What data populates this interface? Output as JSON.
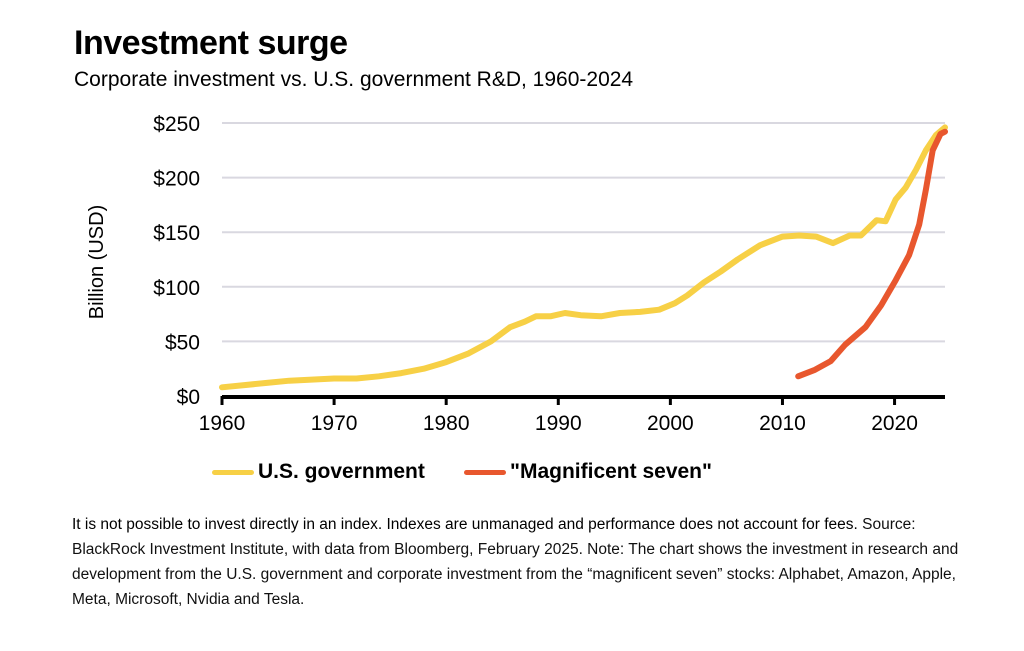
{
  "header": {
    "title": "Investment surge",
    "subtitle": "Corporate investment vs. U.S. government R&D, 1960-2024"
  },
  "footnote": {
    "disclaimer": "It is not possible to invest directly in an index. Indexes are unmanaged and performance does not account for fees.",
    "source": " Source: BlackRock Investment Institute, with data from Bloomberg, February 2025. Note: The chart shows the investment in research and development from the U.S. government and corporate investment from the “magnificent seven” stocks: Alphabet, Amazon, Apple, Meta, Microsoft, Nvidia and Tesla."
  },
  "chart_data": {
    "type": "line",
    "title": "Investment surge",
    "subtitle": "Corporate investment vs. U.S. government R&D, 1960-2024",
    "xlabel": "",
    "ylabel": "Billion (USD)",
    "xlim": [
      1960,
      2024.5
    ],
    "ylim": [
      0,
      250
    ],
    "x_ticks": [
      1960,
      1970,
      1980,
      1990,
      2000,
      2010,
      2020
    ],
    "x_tick_labels": [
      "1960",
      "1970",
      "1980",
      "1990",
      "2000",
      "2010",
      "2020"
    ],
    "y_ticks": [
      0,
      50,
      100,
      150,
      200,
      250
    ],
    "y_tick_labels": [
      "$0",
      "$50",
      "$100",
      "$150",
      "$200",
      "$250"
    ],
    "grid": "horizontal",
    "legend_position": "bottom",
    "series": [
      {
        "name": "U.S. government",
        "color": "#F7D046",
        "x": [
          1960,
          1962,
          1964,
          1966,
          1968,
          1970,
          1972,
          1974,
          1976,
          1978,
          1980,
          1982,
          1984,
          1985.7,
          1987,
          1988,
          1989.3,
          1990.6,
          1992,
          1993.8,
          1995.5,
          1997.3,
          1999,
          2000.4,
          2001.5,
          2003,
          2004.5,
          2006,
          2008,
          2010,
          2011.5,
          2013,
          2014.5,
          2016,
          2017,
          2018.4,
          2019.2,
          2020.1,
          2021,
          2021.9,
          2022.8,
          2023.7,
          2024.5
        ],
        "values": [
          8,
          10,
          12,
          14,
          15,
          16,
          16,
          18,
          21,
          25,
          31,
          39,
          50,
          63,
          68,
          73,
          73,
          76,
          74,
          73,
          76,
          77,
          79,
          85,
          92,
          104,
          114,
          125,
          138,
          146,
          147,
          146,
          140,
          147,
          147,
          161,
          160,
          180,
          191,
          207,
          225,
          239,
          246
        ]
      },
      {
        "name": "\"Magnificent seven\"",
        "color": "#E8572E",
        "x": [
          2011.4,
          2012.9,
          2014.3,
          2015.6,
          2017.4,
          2018.8,
          2020.1,
          2021.3,
          2022.2,
          2022.8,
          2023.4,
          2024.1,
          2024.5
        ],
        "values": [
          18,
          24,
          32,
          47,
          63,
          83,
          106,
          129,
          157,
          189,
          225,
          240,
          242
        ]
      }
    ]
  }
}
